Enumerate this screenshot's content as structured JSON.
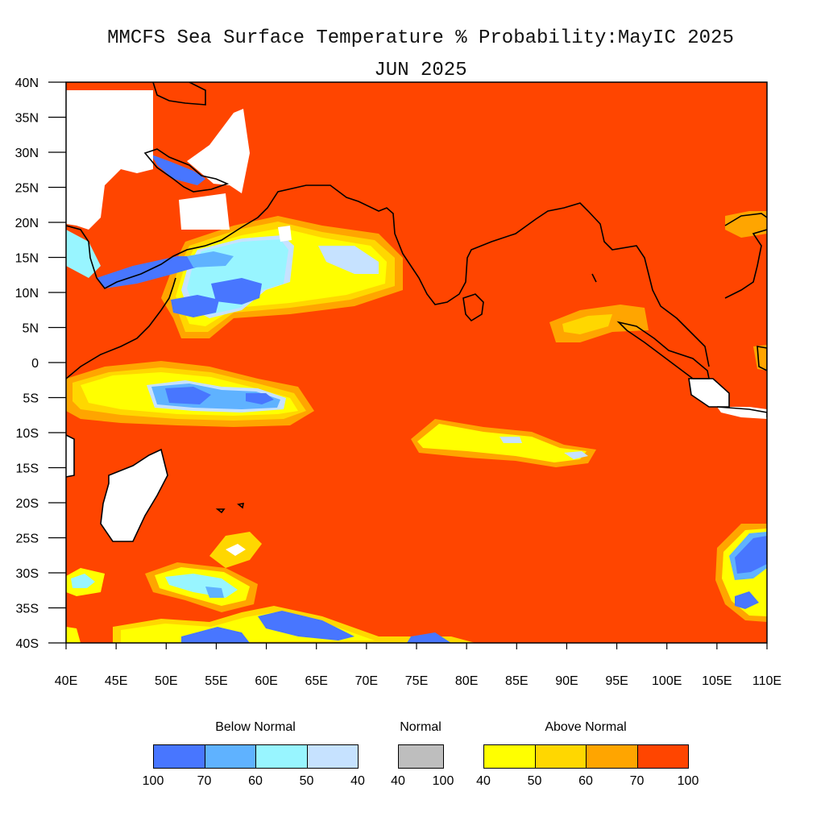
{
  "title": {
    "line1": "MMCFS Sea Surface Temperature % Probability:MayIC 2025",
    "line2": "JUN 2025"
  },
  "map": {
    "lon_range": [
      40,
      110
    ],
    "lat_range": [
      -40,
      40
    ],
    "x_ticks": [
      "40E",
      "45E",
      "50E",
      "55E",
      "60E",
      "65E",
      "70E",
      "75E",
      "80E",
      "85E",
      "90E",
      "95E",
      "100E",
      "105E",
      "110E"
    ],
    "y_ticks": [
      "40N",
      "35N",
      "30N",
      "25N",
      "20N",
      "15N",
      "10N",
      "5N",
      "0",
      "5S",
      "10S",
      "15S",
      "20S",
      "25S",
      "30S",
      "35S",
      "40S"
    ],
    "background_color": "#ff4500"
  },
  "legend": {
    "below": {
      "title": "Below Normal",
      "labels": [
        "100",
        "70",
        "60",
        "50",
        "40"
      ],
      "colors": [
        "#4876ff",
        "#5fb2ff",
        "#98f5ff",
        "#c6e2ff"
      ]
    },
    "normal": {
      "title": "Normal",
      "labels": [
        "40",
        "100"
      ],
      "colors": [
        "#bebebe"
      ]
    },
    "above": {
      "title": "Above Normal",
      "labels": [
        "40",
        "50",
        "60",
        "70",
        "100"
      ],
      "colors": [
        "#ffff00",
        "#ffd700",
        "#ffa500",
        "#ff4500"
      ]
    }
  }
}
